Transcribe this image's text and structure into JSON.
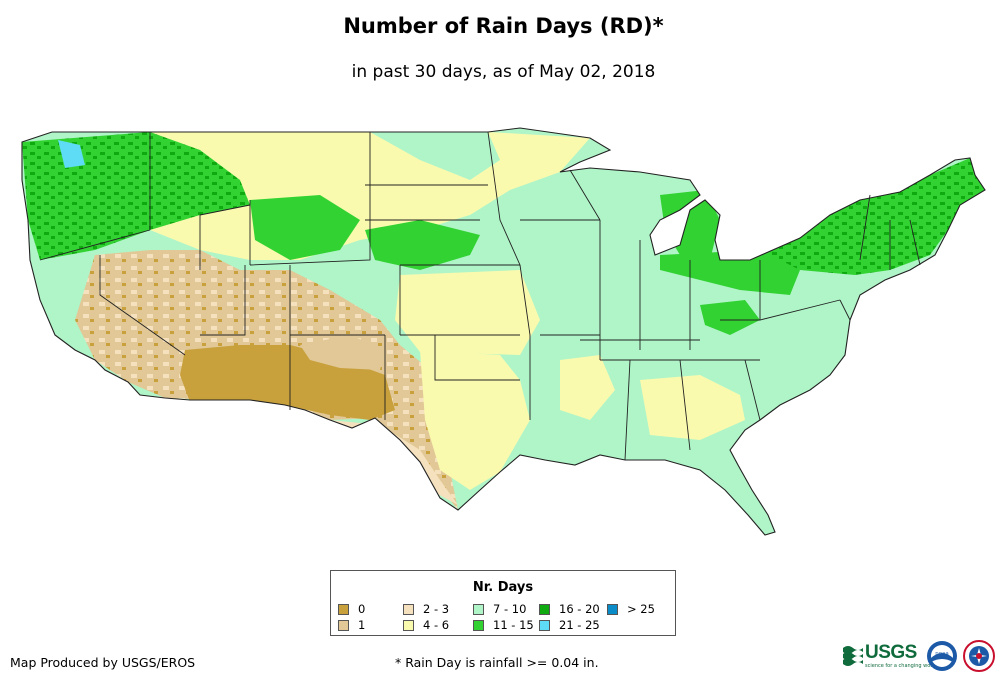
{
  "header": {
    "title": "Number of Rain Days (RD)*",
    "subtitle": "in past 30 days, as of May 02, 2018"
  },
  "legend": {
    "title": "Nr. Days",
    "items": [
      {
        "label": "0",
        "color": "#c8a03c"
      },
      {
        "label": "1",
        "color": "#e1c896"
      },
      {
        "label": "2 - 3",
        "color": "#f5e1be"
      },
      {
        "label": "4 - 6",
        "color": "#fafaaf"
      },
      {
        "label": "7 - 10",
        "color": "#aff5c8"
      },
      {
        "label": "11 - 15",
        "color": "#32d232"
      },
      {
        "label": "16 - 20",
        "color": "#0faa0f"
      },
      {
        "label": "21 - 25",
        "color": "#5fdcf5"
      },
      {
        "label": "> 25",
        "color": "#0a8cc8"
      }
    ]
  },
  "footer": {
    "credit": "Map Produced by USGS/EROS",
    "footnote": "* Rain Day is rainfall >= 0.04 in."
  },
  "logos": {
    "usgs_text": "USGS",
    "usgs_tagline": "science for a changing world",
    "noaa_text": "noaa"
  }
}
